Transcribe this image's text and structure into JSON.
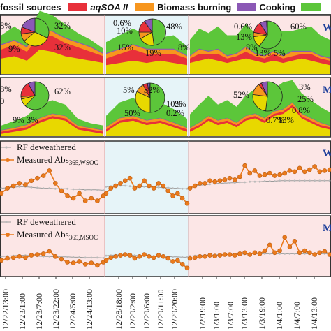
{
  "legend": {
    "items": [
      {
        "label": "fossil sources",
        "color": "#e8d800"
      },
      {
        "label": "aqSOA II",
        "color": "#e8303a"
      },
      {
        "label": "Biomass burning",
        "color": "#f7961e"
      },
      {
        "label": "Cooking",
        "color": "#8b58b5"
      },
      {
        "label": "",
        "color": "#5cc63a"
      }
    ]
  },
  "panel_tags": [
    "W",
    "M",
    "W",
    "M"
  ],
  "colors": {
    "period_pink": "#fce6e6",
    "period_blue": "#e6f4f8",
    "green": "#5cc63a",
    "yellow": "#e8d800",
    "red": "#e8303a",
    "orange": "#f7961e",
    "purple": "#8b58b5",
    "blue": "#2f78c4",
    "measured_line": "#ea7a1c",
    "rf_line": "#9a9a9a",
    "tag": "#1f3f9a"
  },
  "pies": {
    "row1": [
      {
        "labels": [
          "8%",
          "32%",
          "9%",
          "32%"
        ]
      },
      {
        "labels": [
          "0.6%",
          "10%",
          "15%",
          "48%",
          "19%",
          "8%"
        ]
      },
      {
        "labels": [
          "0.6%",
          "13%",
          "8%",
          "60%",
          "13%",
          "5%"
        ]
      }
    ],
    "row2": [
      {
        "labels": [
          "8%",
          "62%",
          "0",
          "9%",
          "3%"
        ]
      },
      {
        "labels": [
          "5%",
          "32%",
          "50%",
          "2%",
          "10%",
          "0.2%"
        ]
      },
      {
        "labels": [
          "52%",
          "3%",
          "25%",
          "0.8%",
          "0.7%",
          "13%"
        ]
      }
    ]
  },
  "line_panels": [
    {
      "rf_label": "RF deweathered",
      "measured_label": "Measured Abs",
      "measured_sub": "365,WSOC"
    },
    {
      "rf_label": "RF deweathered",
      "measured_label": "Measured Abs",
      "measured_sub": "365,MSOC"
    }
  ],
  "chart_data": {
    "type": "area",
    "x_ticks": [
      "12/22/13:00",
      "12/23/1:00",
      "12/23/7:00",
      "12/23/22:00",
      "12/24/5:00",
      "12/24/13:00",
      "12/28/18:00",
      "12/29/2:00",
      "12/29/6:00",
      "12/29/11:00",
      "12/29/20:00",
      "1/2/19:00",
      "1/3/1:00",
      "1/3/7:00",
      "1/3/13:00",
      "1/3/19:00",
      "1/4/1:00",
      "1/4/7:00",
      "1/4/13:00"
    ],
    "periods": [
      "pink",
      "blue",
      "pink"
    ],
    "area_panels": [
      {
        "tag": "W",
        "series": [
          {
            "name": "fossil sources",
            "values": [
              0.35,
              0.4,
              0.3,
              0.55,
              0.5,
              0.4,
              0.35,
              0.3,
              0.25,
              0.2,
              0.25,
              0.3,
              0.25,
              0.3,
              0.25,
              0.2,
              0.25,
              0.3,
              0.35,
              0.3,
              0.25,
              0.3,
              0.35,
              0.3,
              0.25,
              0.3,
              0.25,
              0.3,
              0.35,
              0.3,
              0.25,
              0.2
            ]
          },
          {
            "name": "aqSOA II",
            "values": [
              0.2,
              0.25,
              0.2,
              0.3,
              0.35,
              0.3,
              0.25,
              0.2,
              0.15,
              0.15,
              0.2,
              0.25,
              0.2,
              0.15,
              0.2,
              0.15,
              0.1,
              0.15,
              0.1,
              0.15,
              0.1,
              0.1,
              0.15,
              0.1,
              0.1,
              0.15,
              0.1,
              0.1,
              0.1,
              0.15,
              0.1,
              0.1
            ]
          },
          {
            "name": "Biomass burning",
            "values": [
              0.1,
              0.1,
              0.1,
              0.15,
              0.1,
              0.1,
              0.1,
              0.1,
              0.05,
              0.1,
              0.1,
              0.1,
              0.1,
              0.1,
              0.1,
              0.05,
              0.05,
              0.1,
              0.05,
              0.1,
              0.05,
              0.05,
              0.1,
              0.05,
              0.05,
              0.05,
              0.05,
              0.1,
              0.05,
              0.05,
              0.05,
              0.05
            ]
          },
          {
            "name": "Cooking",
            "values": [
              0.02,
              0.02,
              0.02,
              0.02,
              0.02,
              0.02,
              0.02,
              0.02,
              0.02,
              0.02,
              0.02,
              0.02,
              0.02,
              0.02,
              0.02,
              0.02,
              0.02,
              0.02,
              0.02,
              0.02,
              0.02,
              0.02,
              0.02,
              0.02,
              0.02,
              0.02,
              0.02,
              0.02,
              0.02,
              0.02,
              0.02,
              0.02
            ]
          },
          {
            "name": "",
            "values": [
              0.2,
              0.3,
              0.25,
              0.4,
              0.35,
              0.3,
              0.2,
              0.15,
              0.1,
              0.25,
              0.3,
              0.35,
              0.3,
              0.25,
              0.3,
              0.2,
              0.35,
              0.45,
              0.4,
              0.5,
              0.45,
              0.4,
              0.5,
              0.45,
              0.4,
              0.5,
              0.55,
              0.45,
              0.5,
              0.55,
              0.45,
              0.4
            ]
          }
        ]
      },
      {
        "tag": "M",
        "series": [
          {
            "name": "fossil sources",
            "values": [
              0.05,
              0.1,
              0.15,
              0.3,
              0.4,
              0.35,
              0.15,
              0.1,
              0.05,
              0.1,
              0.3,
              0.35,
              0.25,
              0.3,
              0.2,
              0.1,
              0.1,
              0.2,
              0.35,
              0.25,
              0.3,
              0.2,
              0.35,
              0.4,
              0.3,
              0.45,
              0.5,
              0.65,
              0.4,
              0.3,
              0.2,
              0.15
            ]
          },
          {
            "name": "aqSOA II",
            "values": [
              0.05,
              0.05,
              0.05,
              0.05,
              0.05,
              0.05,
              0.05,
              0.05,
              0.05,
              0.05,
              0.05,
              0.05,
              0.05,
              0.05,
              0.05,
              0.05,
              0.05,
              0.05,
              0.05,
              0.05,
              0.05,
              0.05,
              0.05,
              0.05,
              0.05,
              0.05,
              0.05,
              0.05,
              0.05,
              0.05,
              0.05,
              0.05
            ]
          },
          {
            "name": "Biomass burning",
            "values": [
              0.03,
              0.03,
              0.05,
              0.05,
              0.05,
              0.05,
              0.03,
              0.03,
              0.03,
              0.05,
              0.05,
              0.05,
              0.05,
              0.05,
              0.05,
              0.03,
              0.03,
              0.05,
              0.05,
              0.05,
              0.05,
              0.05,
              0.05,
              0.05,
              0.05,
              0.05,
              0.05,
              0.05,
              0.05,
              0.05,
              0.05,
              0.03
            ]
          },
          {
            "name": "Cooking",
            "values": [
              0.01,
              0.01,
              0.01,
              0.01,
              0.01,
              0.01,
              0.01,
              0.01,
              0.01,
              0.01,
              0.01,
              0.01,
              0.01,
              0.01,
              0.01,
              0.01,
              0.01,
              0.01,
              0.01,
              0.01,
              0.01,
              0.01,
              0.01,
              0.01,
              0.01,
              0.01,
              0.01,
              0.01,
              0.01,
              0.01,
              0.01,
              0.01
            ]
          },
          {
            "name": "",
            "values": [
              0.1,
              0.15,
              0.2,
              0.3,
              0.3,
              0.25,
              0.15,
              0.1,
              0.1,
              0.25,
              0.35,
              0.4,
              0.3,
              0.35,
              0.3,
              0.2,
              0.3,
              0.4,
              0.45,
              0.35,
              0.4,
              0.35,
              0.45,
              0.55,
              0.4,
              0.5,
              0.6,
              0.5,
              0.45,
              0.4,
              0.35,
              0.3
            ]
          }
        ]
      }
    ],
    "line_panels": [
      {
        "tag": "W",
        "rf": [
          0.45,
          0.46,
          0.47,
          0.48,
          0.48,
          0.47,
          0.46,
          0.45,
          0.45,
          0.44,
          0.44,
          0.44,
          0.43,
          0.43,
          0.42,
          0.42,
          0.42,
          0.41,
          0.48,
          0.49,
          0.5,
          0.5,
          0.5,
          0.49,
          0.49,
          0.48,
          0.48,
          0.48,
          0.47,
          0.47,
          0.46,
          0.46,
          0.45,
          0.45,
          0.44,
          0.44,
          0.48,
          0.5,
          0.51,
          0.52,
          0.53,
          0.54,
          0.55,
          0.55,
          0.56,
          0.56,
          0.57,
          0.57,
          0.58,
          0.58,
          0.58,
          0.59,
          0.59,
          0.59,
          0.6,
          0.6,
          0.6,
          0.6,
          0.6,
          0.6,
          0.6,
          0.6,
          0.6,
          0.6,
          0.6
        ],
        "measured": [
          0.35,
          0.45,
          0.5,
          0.55,
          0.52,
          0.6,
          0.65,
          0.7,
          0.8,
          0.55,
          0.4,
          0.3,
          0.25,
          0.35,
          0.2,
          0.25,
          0.2,
          0.3,
          0.35,
          0.45,
          0.5,
          0.55,
          0.6,
          0.65,
          0.45,
          0.5,
          0.6,
          0.5,
          0.45,
          0.55,
          0.5,
          0.4,
          0.3,
          0.35,
          0.25,
          0.15,
          0.45,
          0.5,
          0.55,
          0.55,
          0.6,
          0.58,
          0.6,
          0.62,
          0.65,
          0.62,
          0.68,
          0.9,
          0.75,
          0.8,
          0.7,
          0.72,
          0.75,
          0.7,
          0.72,
          0.75,
          0.8,
          0.78,
          0.85,
          0.78,
          0.82,
          0.88,
          0.78,
          0.8,
          0.82
        ]
      },
      {
        "tag": "M",
        "rf": [
          0.45,
          0.46,
          0.47,
          0.48,
          0.48,
          0.47,
          0.46,
          0.45,
          0.45,
          0.44,
          0.44,
          0.44,
          0.43,
          0.43,
          0.42,
          0.42,
          0.42,
          0.41,
          0.47,
          0.48,
          0.49,
          0.49,
          0.49,
          0.48,
          0.48,
          0.47,
          0.47,
          0.47,
          0.46,
          0.46,
          0.45,
          0.45,
          0.44,
          0.44,
          0.43,
          0.43,
          0.46,
          0.47,
          0.48,
          0.48,
          0.49,
          0.49,
          0.5,
          0.5,
          0.5,
          0.51,
          0.51,
          0.51,
          0.52,
          0.52,
          0.52,
          0.52,
          0.52,
          0.52,
          0.52,
          0.52,
          0.52,
          0.52,
          0.52,
          0.52,
          0.52,
          0.52,
          0.52,
          0.52,
          0.52
        ],
        "measured": [
          0.35,
          0.4,
          0.42,
          0.45,
          0.42,
          0.48,
          0.5,
          0.52,
          0.58,
          0.45,
          0.38,
          0.3,
          0.28,
          0.32,
          0.25,
          0.28,
          0.22,
          0.3,
          0.35,
          0.42,
          0.45,
          0.48,
          0.5,
          0.48,
          0.4,
          0.45,
          0.5,
          0.45,
          0.42,
          0.48,
          0.45,
          0.4,
          0.32,
          0.35,
          0.25,
          0.15,
          0.4,
          0.42,
          0.45,
          0.45,
          0.48,
          0.46,
          0.48,
          0.5,
          0.5,
          0.48,
          0.52,
          0.55,
          0.5,
          0.55,
          0.52,
          0.6,
          0.75,
          0.55,
          0.6,
          0.95,
          0.7,
          0.85,
          0.55,
          0.6,
          0.55,
          0.5,
          0.55,
          0.58,
          0.5
        ]
      }
    ]
  }
}
